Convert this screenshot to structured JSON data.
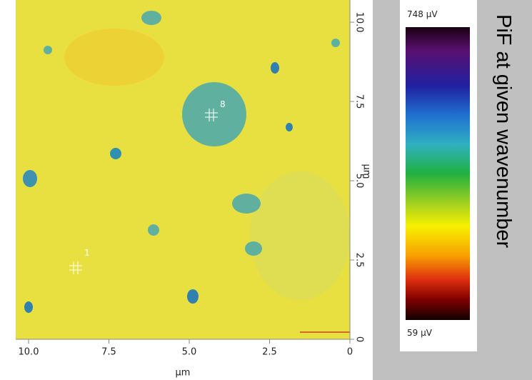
{
  "chart_data": {
    "type": "image-map",
    "side_title": "PiF at given wavenumber",
    "x_label": "µm",
    "y_label": "µm",
    "xlim": [
      10.4,
      0
    ],
    "xticks": [
      {
        "value": 10,
        "label": "10.0"
      },
      7.5,
      {
        "value": 5,
        "label": "5.0"
      },
      2.5,
      0
    ],
    "ylim": [
      0,
      10.7
    ],
    "yticks": [
      0,
      2.5,
      {
        "value": 5,
        "label": "5.0"
      },
      7.5,
      {
        "value": 10,
        "label": "10.0"
      }
    ],
    "colorbar": {
      "max_label": "748 µV",
      "min_label": "59 µV"
    },
    "annotations": [
      "1",
      "8"
    ]
  }
}
